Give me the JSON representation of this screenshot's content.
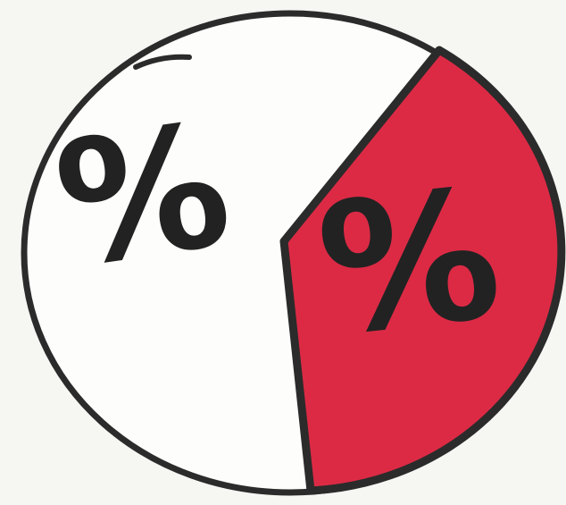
{
  "slices": [
    {
      "label": "%"
    },
    {
      "label": "%"
    }
  ]
}
